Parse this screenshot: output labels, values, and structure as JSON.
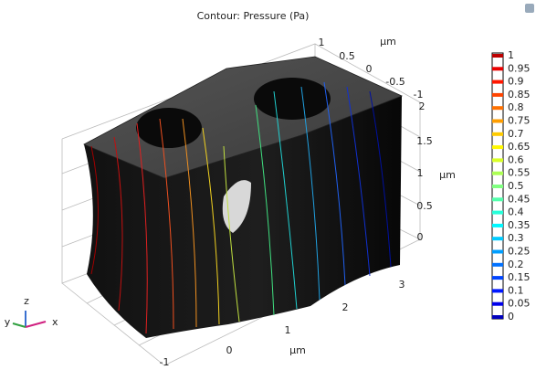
{
  "title": "Contour: Pressure (Pa)",
  "axes": {
    "y": {
      "ticks": [
        "1",
        "0.5",
        "0",
        "-0.5",
        "-1"
      ],
      "unit": "μm"
    },
    "z": {
      "ticks": [
        "2",
        "1.5",
        "1",
        "0.5",
        "0"
      ],
      "unit": "μm"
    },
    "x": {
      "ticks": [
        "3",
        "2",
        "1",
        "0",
        "-1"
      ],
      "unit": "μm"
    }
  },
  "triad": {
    "x": "x",
    "y": "y",
    "z": "z"
  },
  "colorbar": {
    "ticks": [
      1,
      0.95,
      0.9,
      0.85,
      0.8,
      0.75,
      0.7,
      0.65,
      0.6,
      0.55,
      0.5,
      0.45,
      0.4,
      0.35,
      0.3,
      0.25,
      0.2,
      0.15,
      0.1,
      0.05,
      0
    ],
    "lim": [
      0,
      1
    ]
  }
}
